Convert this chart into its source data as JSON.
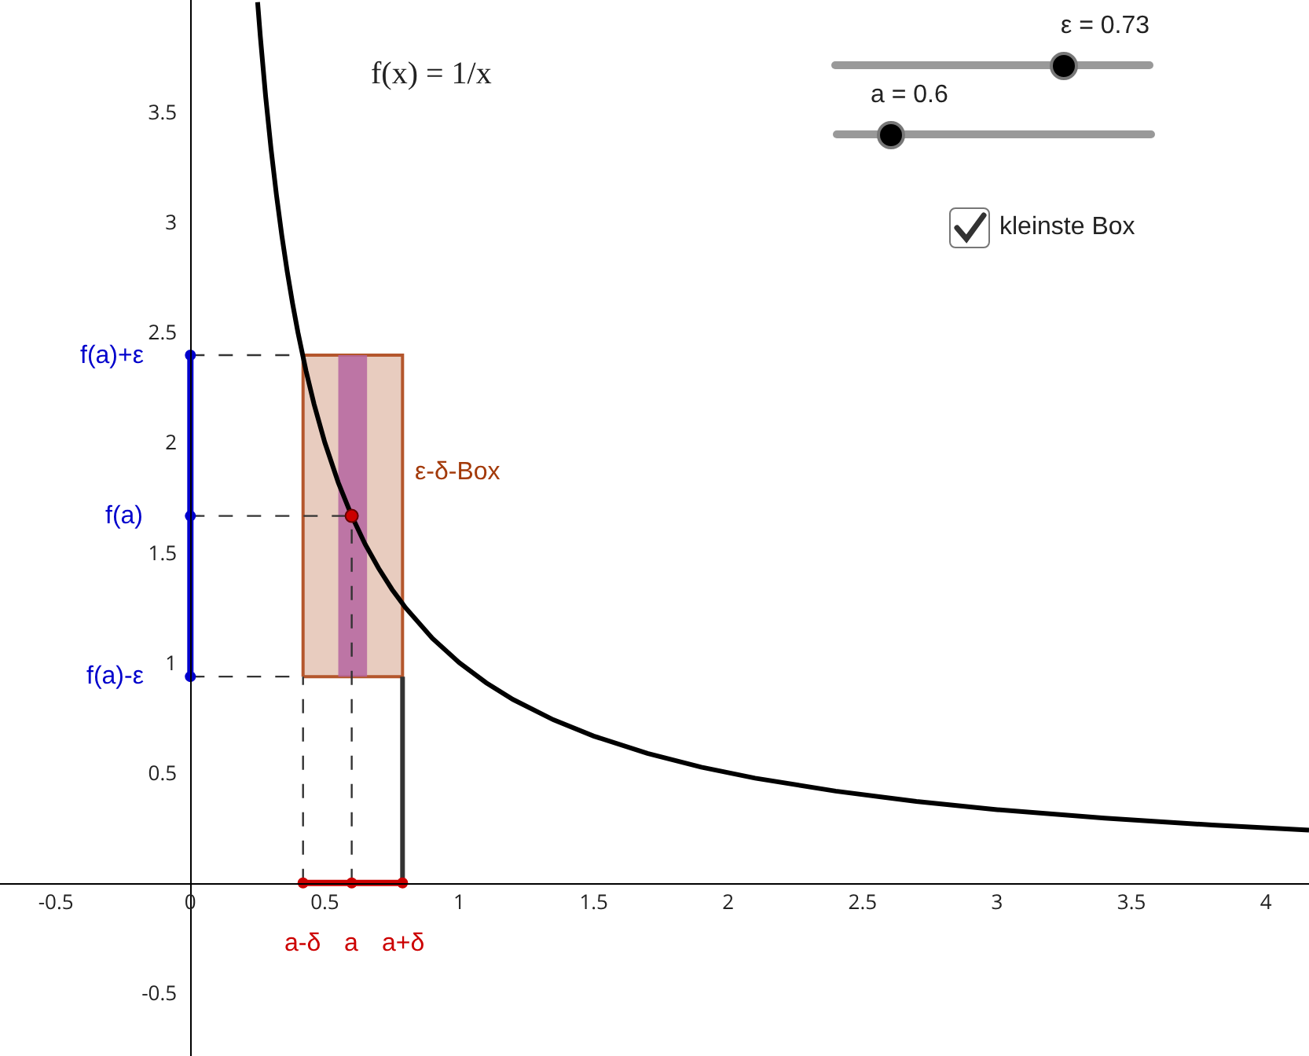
{
  "chart_data": {
    "type": "line",
    "xlim": [
      -0.708,
      4.16
    ],
    "ylim": [
      -0.786,
      4.01
    ],
    "xticks": [
      -0.5,
      0,
      0.5,
      1,
      1.5,
      2,
      2.5,
      3,
      3.5,
      4
    ],
    "yticks": [
      -0.5,
      0.5,
      1,
      1.5,
      2,
      2.5,
      3,
      3.5
    ],
    "grid": false,
    "series": [
      {
        "type": "area",
        "color": "#b4562c",
        "x": [
          0.419,
          0.789,
          0.789,
          0.419,
          0.419
        ],
        "values": [
          0.937,
          0.937,
          2.397,
          2.397,
          0.937
        ]
      },
      {
        "type": "area",
        "color": "#b565a0",
        "x": [
          0.55,
          0.657,
          0.657,
          0.55,
          0.55
        ],
        "values": [
          0.937,
          0.937,
          2.397,
          2.397,
          0.937
        ]
      },
      {
        "color": "#333333",
        "line_style": "dashed",
        "x": [
          0,
          0.419
        ],
        "values": [
          2.397,
          2.397
        ]
      },
      {
        "color": "#333333",
        "line_style": "dashed",
        "x": [
          0,
          0.6
        ],
        "values": [
          1.667,
          1.667
        ]
      },
      {
        "color": "#333333",
        "line_style": "dashed",
        "x": [
          0,
          0.419
        ],
        "values": [
          0.937,
          0.937
        ]
      },
      {
        "color": "#333333",
        "line_style": "dashed",
        "x": [
          0.419,
          0.419
        ],
        "values": [
          0,
          0.937
        ]
      },
      {
        "color": "#333333",
        "line_style": "dashed",
        "x": [
          0.6,
          0.6
        ],
        "values": [
          0,
          1.667
        ]
      },
      {
        "color": "#333333",
        "x": [
          0.789,
          0.789
        ],
        "values": [
          0,
          0.937
        ]
      },
      {
        "color": "#000000",
        "x": [
          0.25,
          0.26,
          0.28,
          0.3,
          0.32,
          0.34,
          0.36,
          0.38,
          0.4,
          0.43,
          0.46,
          0.5,
          0.55,
          0.6,
          0.65,
          0.7,
          0.75,
          0.8,
          0.9,
          1,
          1.1,
          1.2,
          1.35,
          1.5,
          1.7,
          1.9,
          2.1,
          2.4,
          2.7,
          3,
          3.4,
          3.8,
          4.16
        ],
        "values": [
          4,
          3.846,
          3.571,
          3.333,
          3.125,
          2.941,
          2.778,
          2.632,
          2.5,
          2.326,
          2.174,
          2,
          1.818,
          1.667,
          1.538,
          1.429,
          1.333,
          1.25,
          1.111,
          1,
          0.909,
          0.833,
          0.741,
          0.667,
          0.588,
          0.526,
          0.476,
          0.417,
          0.37,
          0.333,
          0.294,
          0.263,
          0.24
        ]
      },
      {
        "color": "#0000cc",
        "marker": "circle",
        "x": [
          0,
          0,
          0
        ],
        "values": [
          0.937,
          1.667,
          2.397
        ]
      },
      {
        "color": "#cc0000",
        "marker": "circle",
        "x": [
          0.419,
          0.6,
          0.789
        ],
        "values": [
          0,
          0,
          0
        ]
      },
      {
        "type": "scatter",
        "color": "#cc0000",
        "marker": "circle",
        "x": [
          0.6
        ],
        "values": [
          1.667
        ]
      }
    ],
    "annotations": [
      "f(x) = 1/x",
      "ε = 0.73",
      "a = 0.6",
      "kleinste Box",
      {
        "text": "f(a)+ε",
        "x": 0,
        "y": 2.397
      },
      {
        "text": "f(a)",
        "x": 0,
        "y": 1.667
      },
      {
        "text": "f(a)-ε",
        "x": 0,
        "y": 0.937
      },
      {
        "text": "a-δ",
        "x": 0.419,
        "y": 0
      },
      {
        "text": "a",
        "x": 0.6,
        "y": 0
      },
      {
        "text": "a+δ",
        "x": 0.789,
        "y": 0
      },
      {
        "text": "ε-δ-Box",
        "x": 0.789,
        "y": 1.667
      }
    ]
  }
}
